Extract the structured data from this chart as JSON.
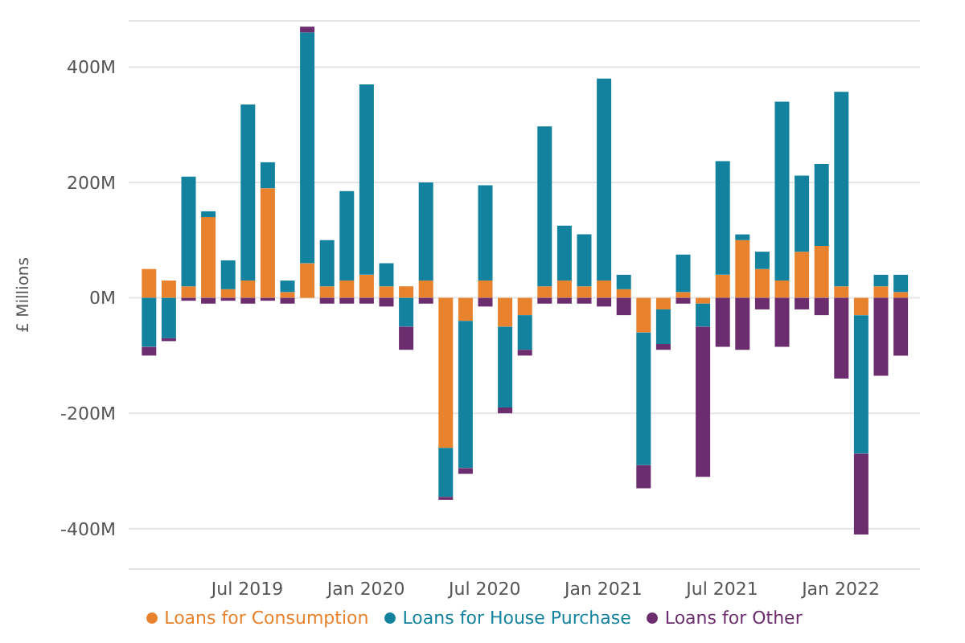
{
  "chart_data": {
    "type": "bar",
    "stacked": true,
    "ylabel": "£ Millions",
    "x": [
      "2019-02",
      "2019-03",
      "2019-04",
      "2019-05",
      "2019-06",
      "2019-07",
      "2019-08",
      "2019-09",
      "2019-10",
      "2019-11",
      "2019-12",
      "2020-01",
      "2020-02",
      "2020-03",
      "2020-04",
      "2020-05",
      "2020-06",
      "2020-07",
      "2020-08",
      "2020-09",
      "2020-10",
      "2020-11",
      "2020-12",
      "2021-01",
      "2021-02",
      "2021-03",
      "2021-04",
      "2021-05",
      "2021-06",
      "2021-07",
      "2021-08",
      "2021-09",
      "2021-10",
      "2021-11",
      "2021-12",
      "2022-01",
      "2022-02",
      "2022-03",
      "2022-04"
    ],
    "series": [
      {
        "name": "Loans for Consumption",
        "color": "#e8822c",
        "values": [
          50,
          30,
          20,
          140,
          15,
          30,
          190,
          10,
          60,
          20,
          30,
          40,
          20,
          20,
          30,
          -260,
          -40,
          30,
          -50,
          -30,
          20,
          30,
          20,
          30,
          15,
          -60,
          -20,
          10,
          -10,
          40,
          100,
          50,
          30,
          80,
          90,
          20,
          -30,
          20,
          10
        ]
      },
      {
        "name": "Loans for House Purchase",
        "color": "#12829e",
        "values": [
          -85,
          -70,
          190,
          10,
          50,
          305,
          45,
          20,
          400,
          80,
          155,
          330,
          40,
          -50,
          170,
          -85,
          -255,
          165,
          -140,
          -60,
          277,
          95,
          90,
          350,
          25,
          -230,
          -60,
          65,
          -40,
          197,
          10,
          30,
          310,
          132,
          142,
          337,
          -240,
          20,
          30
        ]
      },
      {
        "name": "Loans for Other",
        "color": "#6b2d6e",
        "values": [
          -15,
          -5,
          -5,
          -10,
          -5,
          -10,
          -5,
          -10,
          10,
          -10,
          -10,
          -10,
          -15,
          -40,
          -10,
          -5,
          -10,
          -15,
          -10,
          -10,
          -10,
          -10,
          -10,
          -15,
          -30,
          -40,
          -10,
          -10,
          -260,
          -85,
          -90,
          -20,
          -85,
          -20,
          -30,
          -140,
          -140,
          -135,
          -100
        ]
      }
    ],
    "xlim": [
      "2019-01",
      "2022-05"
    ],
    "xticks": [
      {
        "value": "2019-07",
        "label": "Jul 2019"
      },
      {
        "value": "2020-01",
        "label": "Jan 2020"
      },
      {
        "value": "2020-07",
        "label": "Jul 2020"
      },
      {
        "value": "2021-01",
        "label": "Jan 2021"
      },
      {
        "value": "2021-07",
        "label": "Jul 2021"
      },
      {
        "value": "2022-01",
        "label": "Jan 2022"
      }
    ],
    "ylim": [
      -470,
      480
    ],
    "yticks": [
      {
        "value": -400,
        "label": "-400M"
      },
      {
        "value": -200,
        "label": "-200M"
      },
      {
        "value": 0,
        "label": "0M"
      },
      {
        "value": 200,
        "label": "200M"
      },
      {
        "value": 400,
        "label": "400M"
      }
    ],
    "grid": "y",
    "legend": "bottom"
  }
}
